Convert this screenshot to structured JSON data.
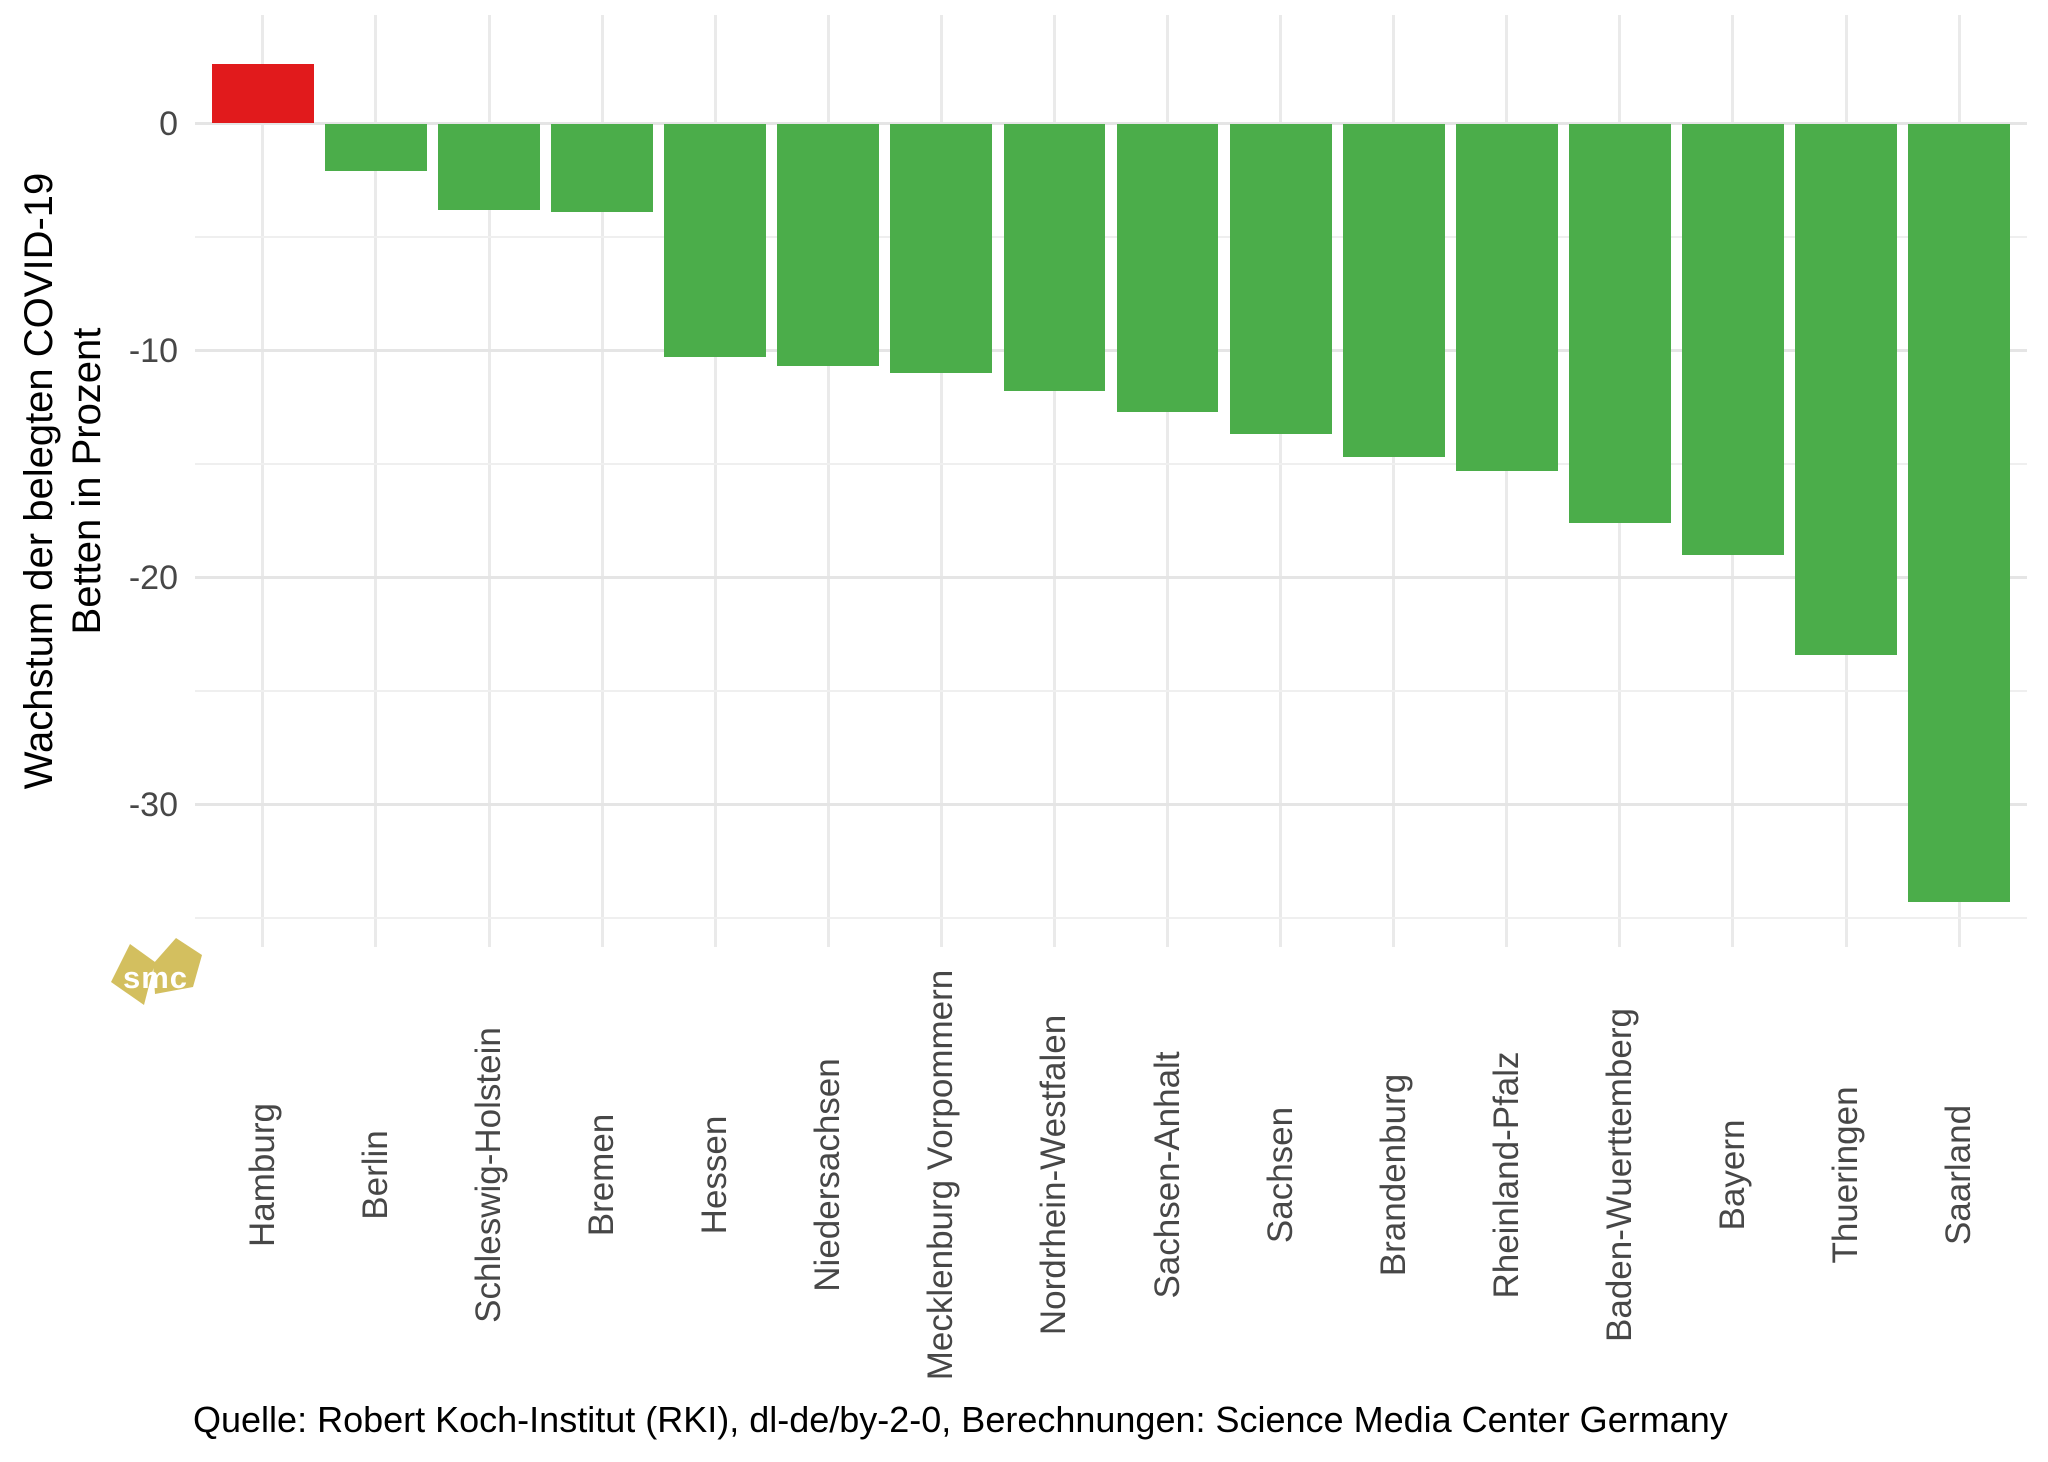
{
  "y_axis": {
    "title_lines": [
      "Wachstum der belegten COVID-19",
      "Betten in Prozent"
    ],
    "tick_labels": [
      "0",
      "-10",
      "-20",
      "-30"
    ],
    "tick_values": [
      0,
      -10,
      -20,
      -30
    ],
    "text_color": "#474747"
  },
  "caption": "Quelle: Robert Koch-Institut (RKI), dl-de/by-2-0, Berechnungen: Science Media Center Germany",
  "logo": {
    "text": "smc",
    "shape_color": "#d3bf5f",
    "text_color": "#ffffff"
  },
  "chart_data": {
    "type": "bar",
    "title": "",
    "xlabel": "",
    "ylabel": "Wachstum der belegten COVID-19 Betten in Prozent",
    "categories": [
      "Hamburg",
      "Berlin",
      "Schleswig-Holstein",
      "Bremen",
      "Hessen",
      "Niedersachsen",
      "Mecklenburg Vorpommern",
      "Nordrhein-Westfalen",
      "Sachsen-Anhalt",
      "Sachsen",
      "Brandenburg",
      "Rheinland-Pfalz",
      "Baden-Wuerttemberg",
      "Bayern",
      "Thueringen",
      "Saarland"
    ],
    "values": [
      2.6,
      -2.1,
      -3.8,
      -3.9,
      -10.3,
      -10.7,
      -11.0,
      -11.8,
      -12.7,
      -13.7,
      -14.7,
      -15.3,
      -17.6,
      -19.0,
      -23.4,
      -34.3
    ],
    "ylim": [
      -36.3,
      4.8
    ],
    "yticks_major": [
      0,
      -10,
      -20,
      -30
    ],
    "yticks_minor": [
      -5,
      -15,
      -25,
      -35
    ],
    "grid": "major and minor horizontal, vertical at each category, no axis lines, white panel",
    "legend": null,
    "colors": {
      "positive_bar": "#e11a1c",
      "negative_bar": "#4bad4a",
      "grid_major": "#e5e5e5",
      "grid_minor": "#efefef",
      "grid_vertical": "#eaeaea",
      "axis_text": "#474747"
    }
  }
}
